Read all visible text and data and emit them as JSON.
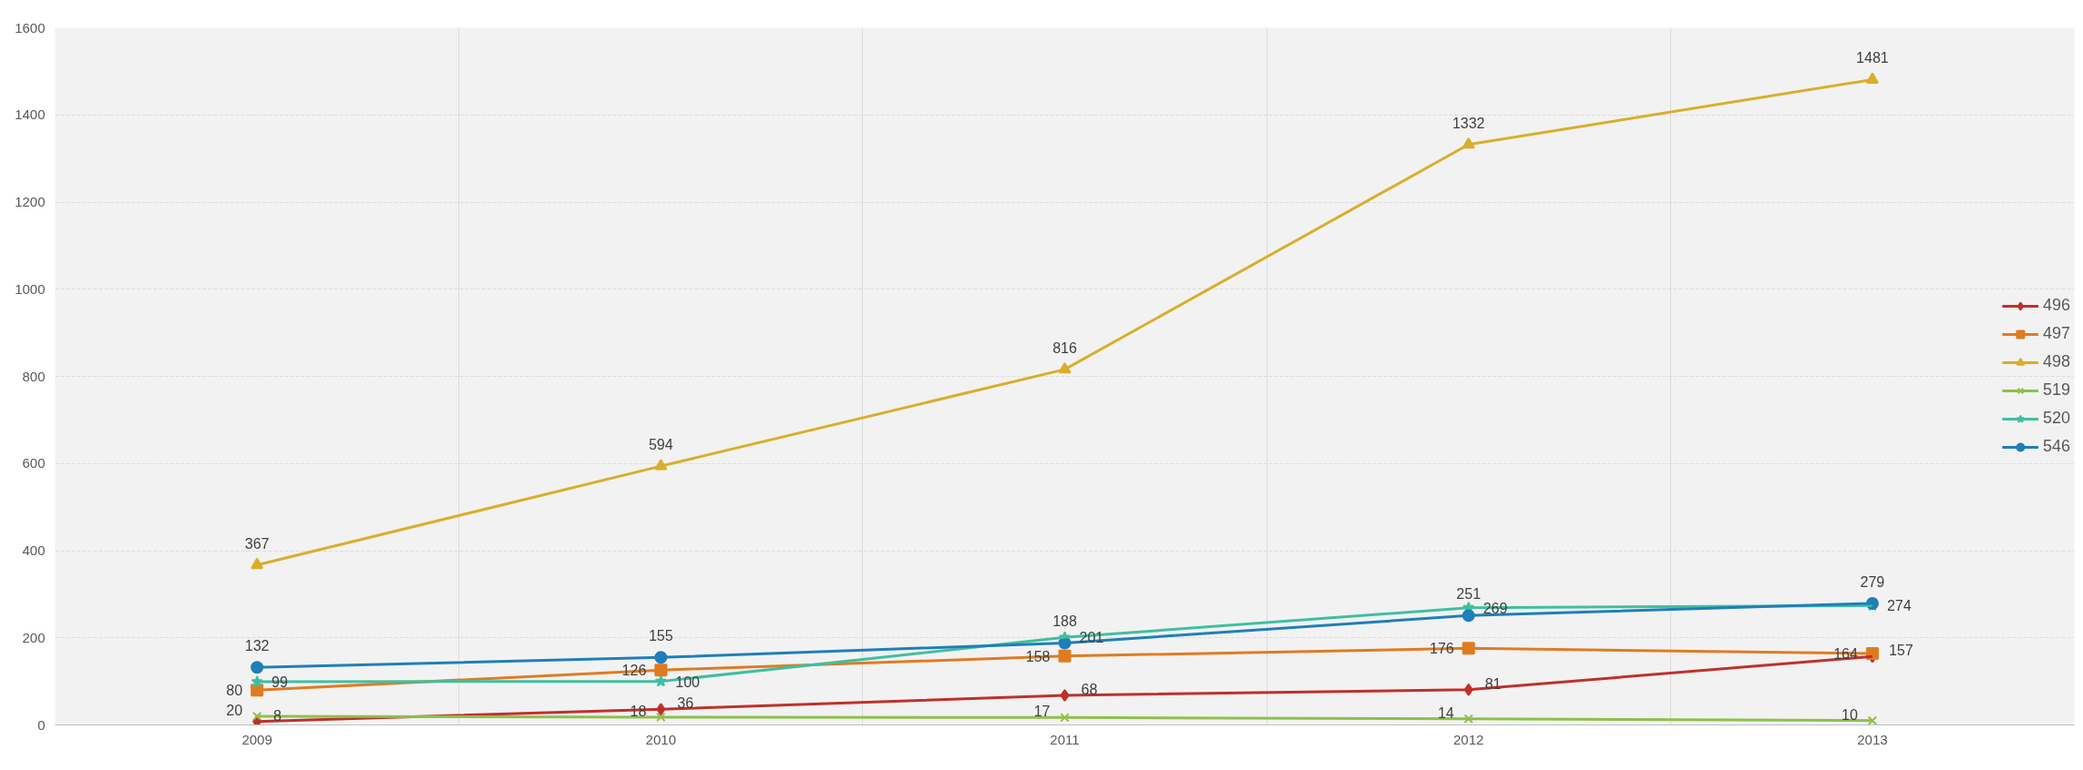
{
  "chart_data": {
    "type": "line",
    "categories": [
      "2009",
      "2010",
      "2011",
      "2012",
      "2013"
    ],
    "ylim": [
      0,
      1600
    ],
    "yticks": [
      0,
      200,
      400,
      600,
      800,
      1000,
      1200,
      1400,
      1600
    ],
    "grid": true,
    "legend": "right",
    "data_labels": true,
    "series": [
      {
        "name": "496",
        "color": "#c0302b",
        "marker": "diamond",
        "values": [
          8,
          36,
          68,
          81,
          157
        ]
      },
      {
        "name": "497",
        "color": "#e07b22",
        "marker": "square",
        "values": [
          80,
          126,
          158,
          176,
          164
        ]
      },
      {
        "name": "498",
        "color": "#d9ae2b",
        "marker": "triangle",
        "values": [
          367,
          594,
          816,
          1332,
          1481
        ]
      },
      {
        "name": "519",
        "color": "#8dc04b",
        "marker": "cross",
        "values": [
          20,
          18,
          17,
          14,
          10
        ]
      },
      {
        "name": "520",
        "color": "#3fbfa0",
        "marker": "star",
        "values": [
          99,
          100,
          201,
          269,
          274
        ]
      },
      {
        "name": "546",
        "color": "#1f7fb8",
        "marker": "circle",
        "values": [
          132,
          155,
          188,
          251,
          279
        ]
      }
    ]
  }
}
